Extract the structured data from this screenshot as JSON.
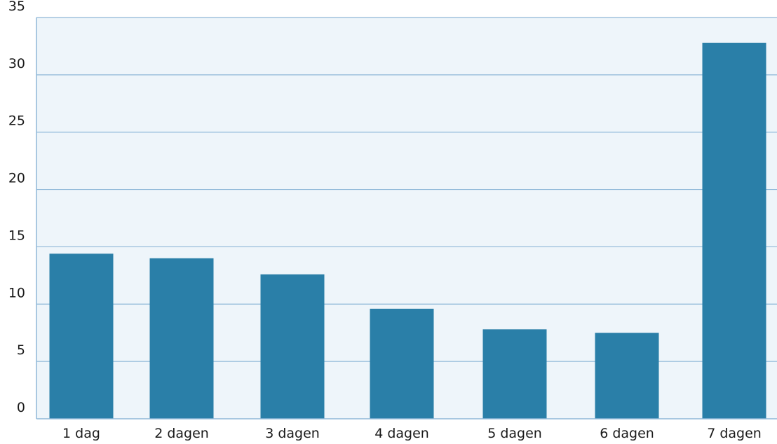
{
  "chart_data": {
    "type": "bar",
    "categories": [
      "1 dag",
      "2 dagen",
      "3 dagen",
      "4 dagen",
      "5 dagen",
      "6 dagen",
      "7 dagen"
    ],
    "values": [
      14.4,
      14.0,
      12.6,
      9.6,
      7.8,
      7.5,
      32.8
    ],
    "ylim": [
      0,
      35
    ],
    "yticks": [
      0,
      5,
      10,
      15,
      20,
      25,
      30,
      35
    ],
    "grid": true,
    "colors": {
      "bar": "#2a7fa8",
      "plot_background": "#eef5fa",
      "gridline": "#8fb8d8",
      "text": "#1a1a1a"
    }
  }
}
